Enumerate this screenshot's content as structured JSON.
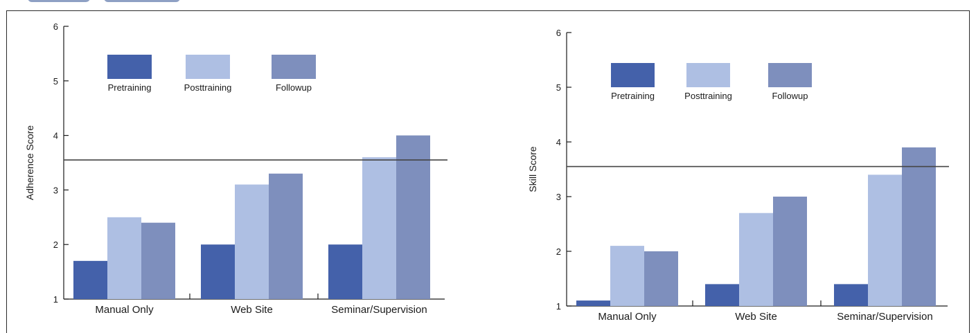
{
  "colors": {
    "pretraining": "#4461aa",
    "posttraining": "#aebfe3",
    "followup": "#7e8fbd",
    "axis": "#1a1a1a",
    "reference_line": "#444444"
  },
  "chart_data": [
    {
      "type": "bar",
      "title": "",
      "xlabel": "",
      "ylabel": "Adherence Score",
      "ylim": [
        1,
        6
      ],
      "yticks": [
        "1",
        "2",
        "3",
        "4",
        "5",
        "6"
      ],
      "categories": [
        "Manual Only",
        "Web Site",
        "Seminar/Supervision"
      ],
      "series": [
        {
          "name": "Pretraining",
          "values": [
            1.7,
            2.0,
            2.0
          ]
        },
        {
          "name": "Posttraining",
          "values": [
            2.5,
            3.1,
            3.6
          ]
        },
        {
          "name": "Followup",
          "values": [
            2.4,
            3.3,
            4.0
          ]
        }
      ],
      "reference_line": 3.55,
      "legend": "top-left",
      "grid": false
    },
    {
      "type": "bar",
      "title": "",
      "xlabel": "",
      "ylabel": "Skill Score",
      "ylim": [
        1,
        6
      ],
      "yticks": [
        "1",
        "2",
        "3",
        "4",
        "5",
        "6"
      ],
      "categories": [
        "Manual Only",
        "Web Site",
        "Seminar/Supervision"
      ],
      "series": [
        {
          "name": "Pretraining",
          "values": [
            1.1,
            1.4,
            1.4
          ]
        },
        {
          "name": "Posttraining",
          "values": [
            2.1,
            2.7,
            3.4
          ]
        },
        {
          "name": "Followup",
          "values": [
            2.0,
            3.0,
            3.9
          ]
        }
      ],
      "reference_line": 3.55,
      "legend": "top-left",
      "grid": false
    }
  ]
}
